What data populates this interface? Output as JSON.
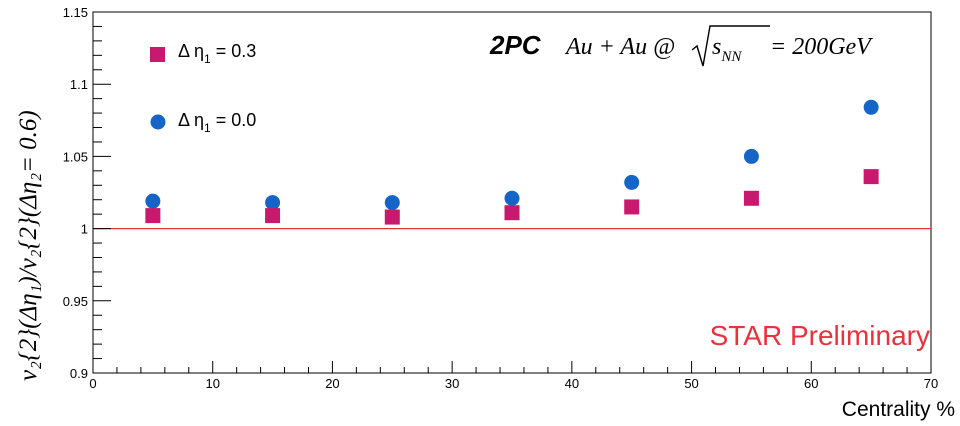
{
  "chart_data": {
    "type": "scatter",
    "xlabel": "Centrality %",
    "ylabel": "v₂{2}(Δη₁)/v₂{2}(Δη₂= 0.6)",
    "xlim": [
      0,
      70
    ],
    "ylim": [
      0.9,
      1.15
    ],
    "x_ticks": [
      0,
      10,
      20,
      30,
      40,
      50,
      60,
      70
    ],
    "y_ticks": [
      0.9,
      0.95,
      1,
      1.05,
      1.1,
      1.15
    ],
    "x_tick_labels": [
      "0",
      "10",
      "20",
      "30",
      "40",
      "50",
      "60",
      "70"
    ],
    "y_tick_labels": [
      "0.9",
      "0.95",
      "1",
      "1.05",
      "1.1",
      "1.15"
    ],
    "reference_line": {
      "y": 1.0,
      "color": "#e8323c"
    },
    "grid": false,
    "legend_position": "top-left",
    "series": [
      {
        "name": "Δ η₁ = 0.3",
        "label_main": "Δ η",
        "label_sub": "1",
        "label_value": " = 0.3",
        "marker": "square",
        "color": "#c8196e",
        "x": [
          5,
          15,
          25,
          35,
          45,
          55,
          65
        ],
        "y": [
          1.009,
          1.009,
          1.008,
          1.011,
          1.015,
          1.021,
          1.036
        ]
      },
      {
        "name": "Δ η₁ = 0.0",
        "label_main": "Δ η",
        "label_sub": "1",
        "label_value": " = 0.0",
        "marker": "circle",
        "color": "#1565c8",
        "x": [
          5,
          15,
          25,
          35,
          45,
          55,
          65
        ],
        "y": [
          1.019,
          1.018,
          1.018,
          1.021,
          1.032,
          1.05,
          1.084
        ]
      }
    ],
    "annotations": {
      "method": "2PC",
      "system": "Au + Au @",
      "sqrt_arg": "s",
      "sqrt_sub": "NN",
      "energy": " = 200GeV",
      "preliminary": "STAR Preliminary",
      "preliminary_color": "#e8323c"
    }
  }
}
